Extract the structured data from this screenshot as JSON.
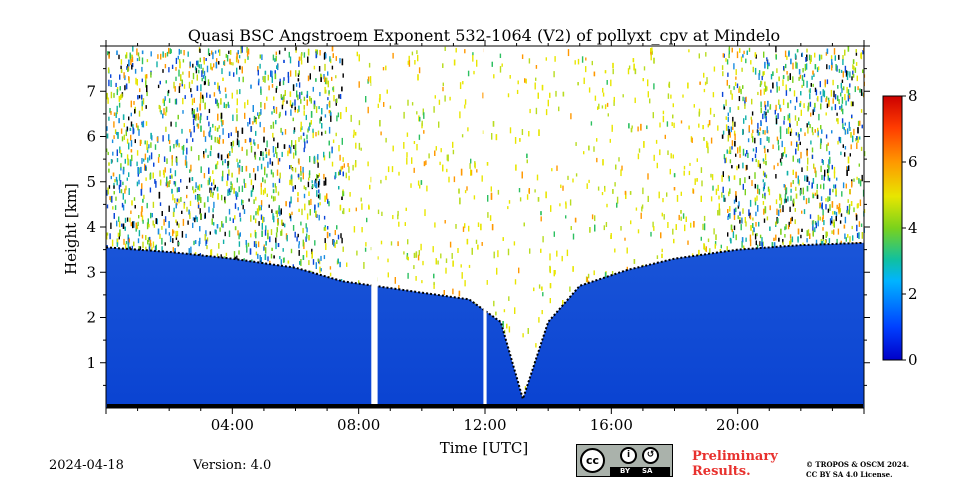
{
  "chart_data": {
    "type": "heatmap",
    "title": "Quasi BSC Angstroem Exponent 532-1064 (V2) of pollyxt_cpv at Mindelo",
    "xlabel": "Time [UTC]",
    "ylabel": "Height [km]",
    "x_range_hours": [
      0,
      24
    ],
    "y_range_km": [
      0,
      8
    ],
    "x_ticks": [
      {
        "value": 4,
        "label": "04:00"
      },
      {
        "value": 8,
        "label": "08:00"
      },
      {
        "value": 12,
        "label": "12:00"
      },
      {
        "value": 16,
        "label": "16:00"
      },
      {
        "value": 20,
        "label": "20:00"
      }
    ],
    "y_ticks": [
      {
        "value": 1,
        "label": "1"
      },
      {
        "value": 2,
        "label": "2"
      },
      {
        "value": 3,
        "label": "3"
      },
      {
        "value": 4,
        "label": "4"
      },
      {
        "value": 5,
        "label": "5"
      },
      {
        "value": 6,
        "label": "6"
      },
      {
        "value": 7,
        "label": "7"
      }
    ],
    "colorbar": {
      "range": [
        0,
        8
      ],
      "ticks": [
        {
          "value": 0,
          "label": "0"
        },
        {
          "value": 2,
          "label": "2"
        },
        {
          "value": 4,
          "label": "4"
        },
        {
          "value": 6,
          "label": "6"
        },
        {
          "value": 8,
          "label": "8"
        }
      ],
      "colormap": "jet"
    },
    "boundary_layer_top_km": [
      {
        "t": 0,
        "h": 3.55
      },
      {
        "t": 2,
        "h": 3.45
      },
      {
        "t": 4,
        "h": 3.3
      },
      {
        "t": 6,
        "h": 3.1
      },
      {
        "t": 7.5,
        "h": 2.8
      },
      {
        "t": 8.5,
        "h": 2.7
      },
      {
        "t": 10,
        "h": 2.55
      },
      {
        "t": 11.5,
        "h": 2.4
      },
      {
        "t": 12.5,
        "h": 1.9
      },
      {
        "t": 13.2,
        "h": 0.2
      },
      {
        "t": 14,
        "h": 1.9
      },
      {
        "t": 15,
        "h": 2.7
      },
      {
        "t": 16.5,
        "h": 3.05
      },
      {
        "t": 18,
        "h": 3.3
      },
      {
        "t": 20,
        "h": 3.5
      },
      {
        "t": 22,
        "h": 3.6
      },
      {
        "t": 24,
        "h": 3.65
      }
    ],
    "data_gaps_hours": [
      [
        8.4,
        8.6
      ],
      [
        11.95,
        12.05
      ]
    ]
  },
  "footer": {
    "date": "2024-04-18",
    "version": "Version: 4.0",
    "license_badge": {
      "cc": "cc",
      "by": "BY",
      "sa": "SA",
      "icon": "creative-commons-icon"
    },
    "preliminary_line1": "Preliminary",
    "preliminary_line2": "Results.",
    "copyright_line1": "© TROPOS & OSCM 2024.",
    "copyright_line2": "CC BY SA 4.0 License."
  },
  "colors": {
    "boundary_layer": "#1c4fd8",
    "preliminary_text": "#e8312e"
  }
}
